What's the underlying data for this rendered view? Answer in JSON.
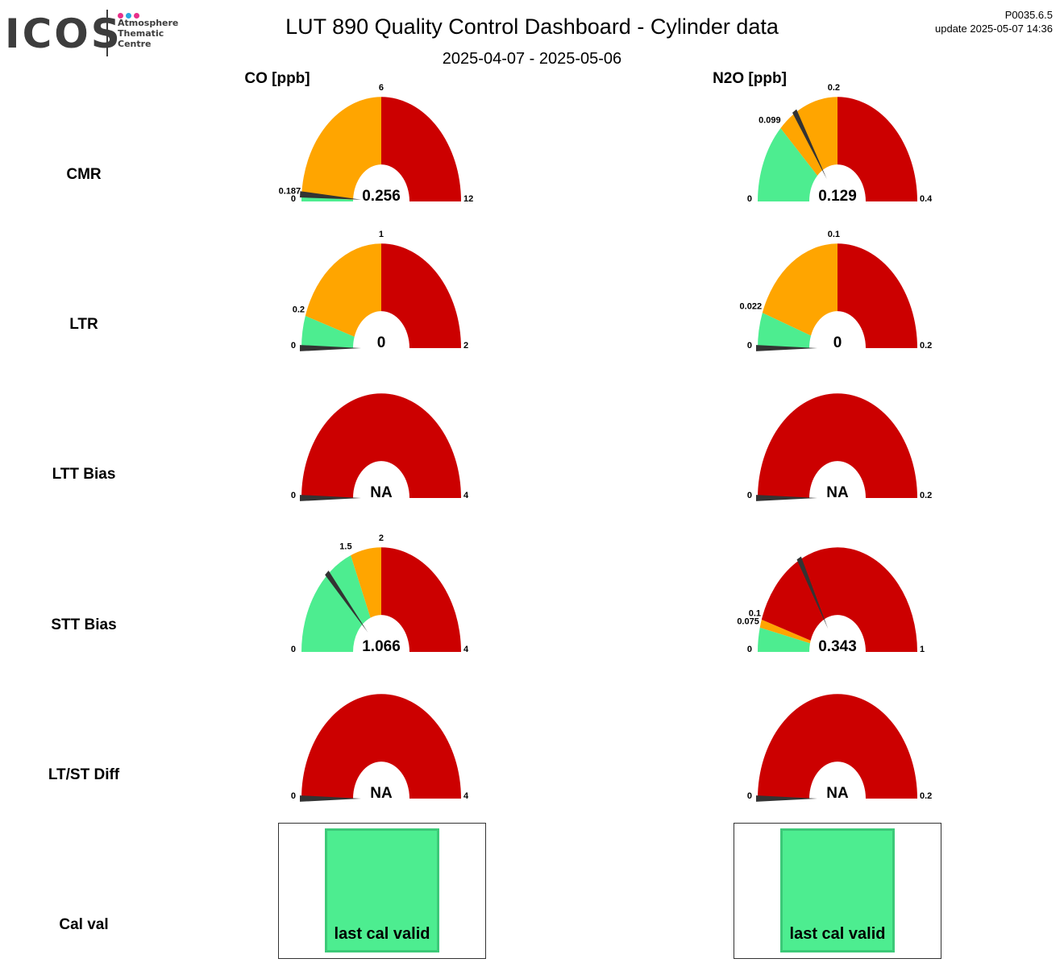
{
  "header": {
    "logo_text": "ICOS",
    "logo_sub": [
      "Atmosphere",
      "Thematic",
      "Centre"
    ],
    "logo_dot_colors": [
      "#e8308a",
      "#2aa7e0",
      "#e8308a"
    ],
    "title": "LUT 890 Quality Control Dashboard - Cylinder data",
    "subtitle": "2025-04-07 - 2025-05-06",
    "version": "P0035.6.5",
    "update": "update  2025-05-07 14:36"
  },
  "colors": {
    "green": "#4ded90",
    "orange": "#ffa500",
    "red": "#cc0000",
    "needle": "#333333"
  },
  "chart_data": {
    "type": "gauge",
    "columns": [
      "CO [ppb]",
      "N2O [ppb]"
    ],
    "rows": [
      "CMR",
      "LTR",
      "LTT Bias",
      "STT Bias",
      "LT/ST Diff",
      "Cal val"
    ],
    "gauges": [
      [
        {
          "min": 0,
          "max": 12,
          "min_label": "0",
          "max_label": "12",
          "green_to": 0.187,
          "green_label": "0.187",
          "orange_to": 6,
          "orange_label": "6",
          "value": 0.256,
          "value_label": "0.256"
        },
        {
          "min": 0,
          "max": 2,
          "min_label": "0",
          "max_label": "2",
          "green_to": 0.2,
          "green_label": "0.2",
          "orange_to": 1,
          "orange_label": "1",
          "value": 0,
          "value_label": "0"
        },
        {
          "min": 0,
          "max": 4,
          "min_label": "0",
          "max_label": "4",
          "green_to": 0,
          "green_label": "0",
          "orange_to": 0,
          "orange_label": "0",
          "value": 0,
          "value_label": "NA"
        },
        {
          "min": 0,
          "max": 4,
          "min_label": "0",
          "max_label": "4",
          "green_to": 1.5,
          "green_label": "1.5",
          "orange_to": 2,
          "orange_label": "2",
          "value": 1.066,
          "value_label": "1.066"
        },
        {
          "min": 0,
          "max": 4,
          "min_label": "0",
          "max_label": "4",
          "green_to": 0,
          "green_label": "0",
          "orange_to": 0,
          "orange_label": "0",
          "value": 0,
          "value_label": "NA"
        }
      ],
      [
        {
          "min": 0,
          "max": 0.4,
          "min_label": "0",
          "max_label": "0.4",
          "green_to": 0.099,
          "green_label": "0.099",
          "orange_to": 0.2,
          "orange_label": "0.2",
          "value": 0.129,
          "value_label": "0.129"
        },
        {
          "min": 0,
          "max": 0.2,
          "min_label": "0",
          "max_label": "0.2",
          "green_to": 0.022,
          "green_label": "0.022",
          "orange_to": 0.1,
          "orange_label": "0.1",
          "value": 0,
          "value_label": "0"
        },
        {
          "min": 0,
          "max": 0.2,
          "min_label": "0",
          "max_label": "0.2",
          "green_to": 0,
          "green_label": "0",
          "orange_to": 0,
          "orange_label": "0",
          "value": 0,
          "value_label": "NA"
        },
        {
          "min": 0,
          "max": 1,
          "min_label": "0",
          "max_label": "1",
          "green_to": 0.075,
          "green_label": "0.075",
          "orange_to": 0.1,
          "orange_label": "0.1",
          "value": 0.343,
          "value_label": "0.343"
        },
        {
          "min": 0,
          "max": 0.2,
          "min_label": "0",
          "max_label": "0.2",
          "green_to": 0,
          "green_label": "0",
          "orange_to": 0,
          "orange_label": "0",
          "value": 0,
          "value_label": "NA"
        }
      ]
    ],
    "cal_val": [
      "last cal valid",
      "last cal valid"
    ]
  }
}
